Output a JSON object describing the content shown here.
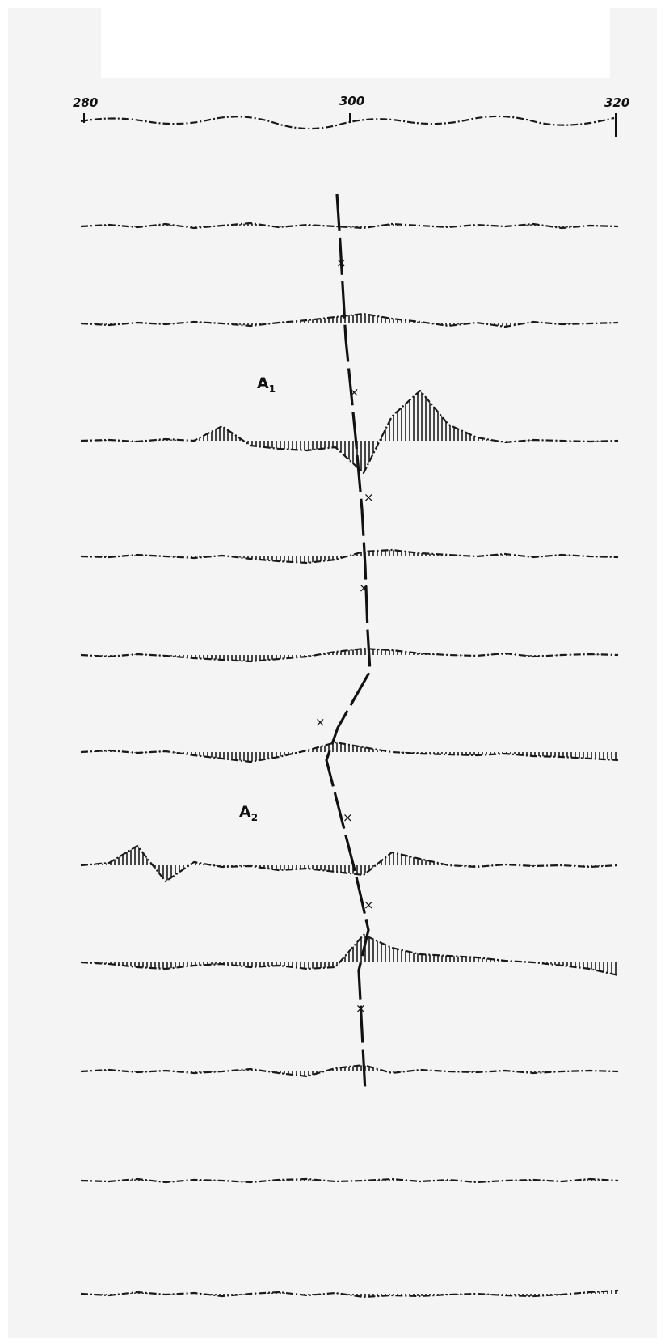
{
  "chart_data": {
    "type": "line",
    "title": "",
    "xlabel": "",
    "ylabel": "",
    "x_ticks": [
      "280",
      "300",
      "320"
    ],
    "xlim": [
      280,
      320
    ],
    "grid": false,
    "panel_labels": [
      {
        "main": "A",
        "sub": "1"
      },
      {
        "main": "A",
        "sub": "2"
      }
    ],
    "marker_symbol": "×",
    "traces": [
      {
        "y": [
          0,
          2,
          -1,
          3,
          -2,
          1,
          4,
          -1,
          2,
          0,
          -2,
          3,
          1,
          -1,
          2,
          0,
          3,
          -2,
          1,
          0
        ]
      },
      {
        "y": [
          0,
          -2,
          1,
          -1,
          2,
          0,
          -3,
          1,
          4,
          8,
          12,
          6,
          2,
          -3,
          1,
          -4,
          2,
          -1,
          0,
          1
        ]
      },
      {
        "y": [
          0,
          1,
          -1,
          2,
          0,
          18,
          -6,
          -10,
          -12,
          -8,
          -40,
          30,
          62,
          20,
          4,
          -2,
          1,
          0,
          -1,
          0
        ]
      },
      {
        "y": [
          0,
          -1,
          2,
          0,
          -2,
          1,
          -3,
          -6,
          -8,
          -4,
          6,
          8,
          4,
          2,
          0,
          3,
          -1,
          2,
          0,
          -1
        ]
      },
      {
        "y": [
          0,
          -2,
          1,
          -1,
          -4,
          -6,
          -8,
          -5,
          -2,
          4,
          8,
          6,
          2,
          0,
          -1,
          2,
          -2,
          0,
          1,
          0
        ]
      },
      {
        "y": [
          0,
          2,
          -1,
          1,
          -4,
          -8,
          -12,
          -6,
          2,
          12,
          6,
          0,
          -2,
          -3,
          -4,
          -2,
          -5,
          -6,
          -8,
          -10
        ]
      },
      {
        "y": [
          0,
          3,
          24,
          -20,
          4,
          -2,
          -1,
          -6,
          -4,
          -8,
          -12,
          16,
          8,
          0,
          -2,
          1,
          -1,
          0,
          -2,
          0
        ]
      },
      {
        "y": [
          0,
          -2,
          -6,
          -8,
          -4,
          -2,
          -6,
          -4,
          -8,
          -6,
          34,
          18,
          10,
          8,
          6,
          2,
          0,
          -4,
          -8,
          -16
        ]
      },
      {
        "y": [
          0,
          2,
          -1,
          1,
          -2,
          0,
          3,
          -2,
          -6,
          4,
          8,
          -2,
          2,
          0,
          -1,
          1,
          -2,
          0,
          1,
          0
        ]
      },
      {
        "y": [
          0,
          -1,
          2,
          -2,
          1,
          0,
          -2,
          1,
          2,
          -1,
          0,
          2,
          -1,
          1,
          -2,
          0,
          1,
          -1,
          2,
          0
        ]
      },
      {
        "y": [
          0,
          -2,
          2,
          -1,
          1,
          -3,
          0,
          2,
          -2,
          1,
          -4,
          -2,
          -3,
          -1,
          0,
          -2,
          -3,
          -1,
          2,
          4
        ]
      }
    ]
  }
}
